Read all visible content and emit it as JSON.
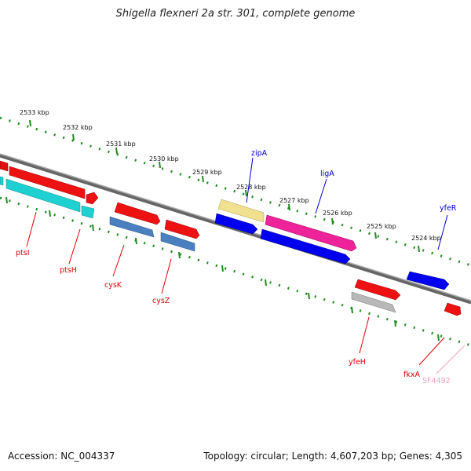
{
  "title": "Shigella flexneri 2a str. 301, complete genome",
  "accession": "Accession: NC_004337",
  "topology": "Topology: circular; Length: 4,607,203 bp; Genes: 4,305",
  "ticks": [
    "2533 kbp",
    "2532 kbp",
    "2531 kbp",
    "2530 kbp",
    "2529 kbp",
    "2528 kbp",
    "2527 kbp",
    "2526 kbp",
    "2525 kbp",
    "2524 kbp"
  ],
  "genes": [
    {
      "name": "ptsI",
      "color": "#dd0000"
    },
    {
      "name": "ptsH",
      "color": "#dd0000"
    },
    {
      "name": "cysK",
      "color": "#dd0000"
    },
    {
      "name": "cysZ",
      "color": "#dd0000"
    },
    {
      "name": "zipA",
      "color": "#0000cc"
    },
    {
      "name": "ligA",
      "color": "#0000cc"
    },
    {
      "name": "yfeR",
      "color": "#0000cc"
    },
    {
      "name": "yfeH",
      "color": "#dd0000"
    },
    {
      "name": "fkxA",
      "color": "#dd0000"
    },
    {
      "name": "SF4492",
      "color": "#f0a0c0"
    }
  ]
}
